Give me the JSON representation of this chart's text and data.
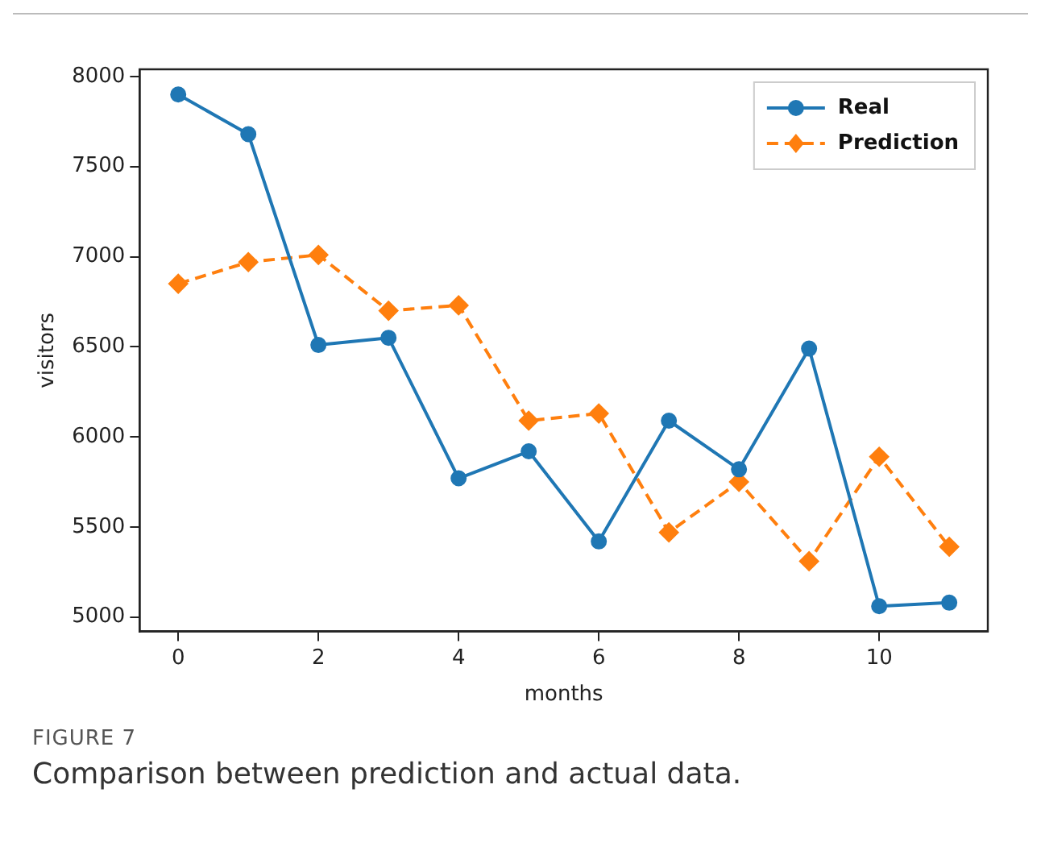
{
  "chart_data": {
    "type": "line",
    "title": "FIGURE 7",
    "subtitle": "Comparison between prediction and actual data.",
    "xlabel": "months",
    "ylabel": "visitors",
    "x": [
      0,
      1,
      2,
      3,
      4,
      5,
      6,
      7,
      8,
      9,
      10,
      11
    ],
    "series": [
      {
        "name": "Real",
        "color": "#1f77b4",
        "marker": "circle",
        "line_style": "solid",
        "values": [
          7900,
          7680,
          6510,
          6550,
          5770,
          5920,
          5420,
          6090,
          5820,
          6490,
          5060,
          5080
        ]
      },
      {
        "name": "Prediction",
        "color": "#ff7f0e",
        "marker": "diamond",
        "line_style": "dashed",
        "values": [
          6850,
          6970,
          7010,
          6700,
          6730,
          6090,
          6130,
          5470,
          5750,
          5310,
          5890,
          5390
        ]
      }
    ],
    "xlim": [
      -0.55,
      11.55
    ],
    "xticks": [
      0,
      2,
      4,
      6,
      8,
      10
    ],
    "ylim": [
      4920,
      8040
    ],
    "yticks": [
      5000,
      5500,
      6000,
      6500,
      7000,
      7500,
      8000
    ],
    "grid": false,
    "legend": "top right"
  }
}
